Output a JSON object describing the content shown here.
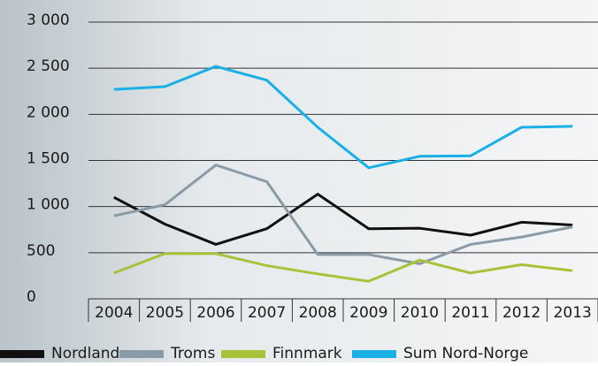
{
  "chart_data": {
    "type": "line",
    "categories": [
      "2004",
      "2005",
      "2006",
      "2007",
      "2008",
      "2009",
      "2010",
      "2011",
      "2012",
      "2013"
    ],
    "series": [
      {
        "name": "Nordland",
        "color": "#111111",
        "values": [
          1100,
          810,
          590,
          760,
          1135,
          760,
          765,
          690,
          830,
          800
        ]
      },
      {
        "name": "Troms",
        "color": "#8a9ba8",
        "values": [
          900,
          1020,
          1450,
          1270,
          480,
          480,
          380,
          590,
          670,
          780
        ]
      },
      {
        "name": "Finnmark",
        "color": "#a8c23a",
        "values": [
          280,
          490,
          490,
          360,
          270,
          190,
          420,
          280,
          370,
          305
        ]
      },
      {
        "name": "Sum Nord-Norge",
        "color": "#1ab0e6",
        "values": [
          2270,
          2300,
          2520,
          2370,
          1860,
          1420,
          1545,
          1550,
          1860,
          1870
        ]
      }
    ],
    "ylim": [
      0,
      3000
    ],
    "yticks": [
      0,
      500,
      {
        "value": 1000,
        "label": "1 000"
      },
      {
        "value": 1500,
        "label": "1 500"
      },
      {
        "value": 2000,
        "label": "2 000"
      },
      {
        "value": 2500,
        "label": "2 500"
      },
      {
        "value": 3000,
        "label": "3 000"
      }
    ],
    "grid": true,
    "legend": "bottom"
  }
}
